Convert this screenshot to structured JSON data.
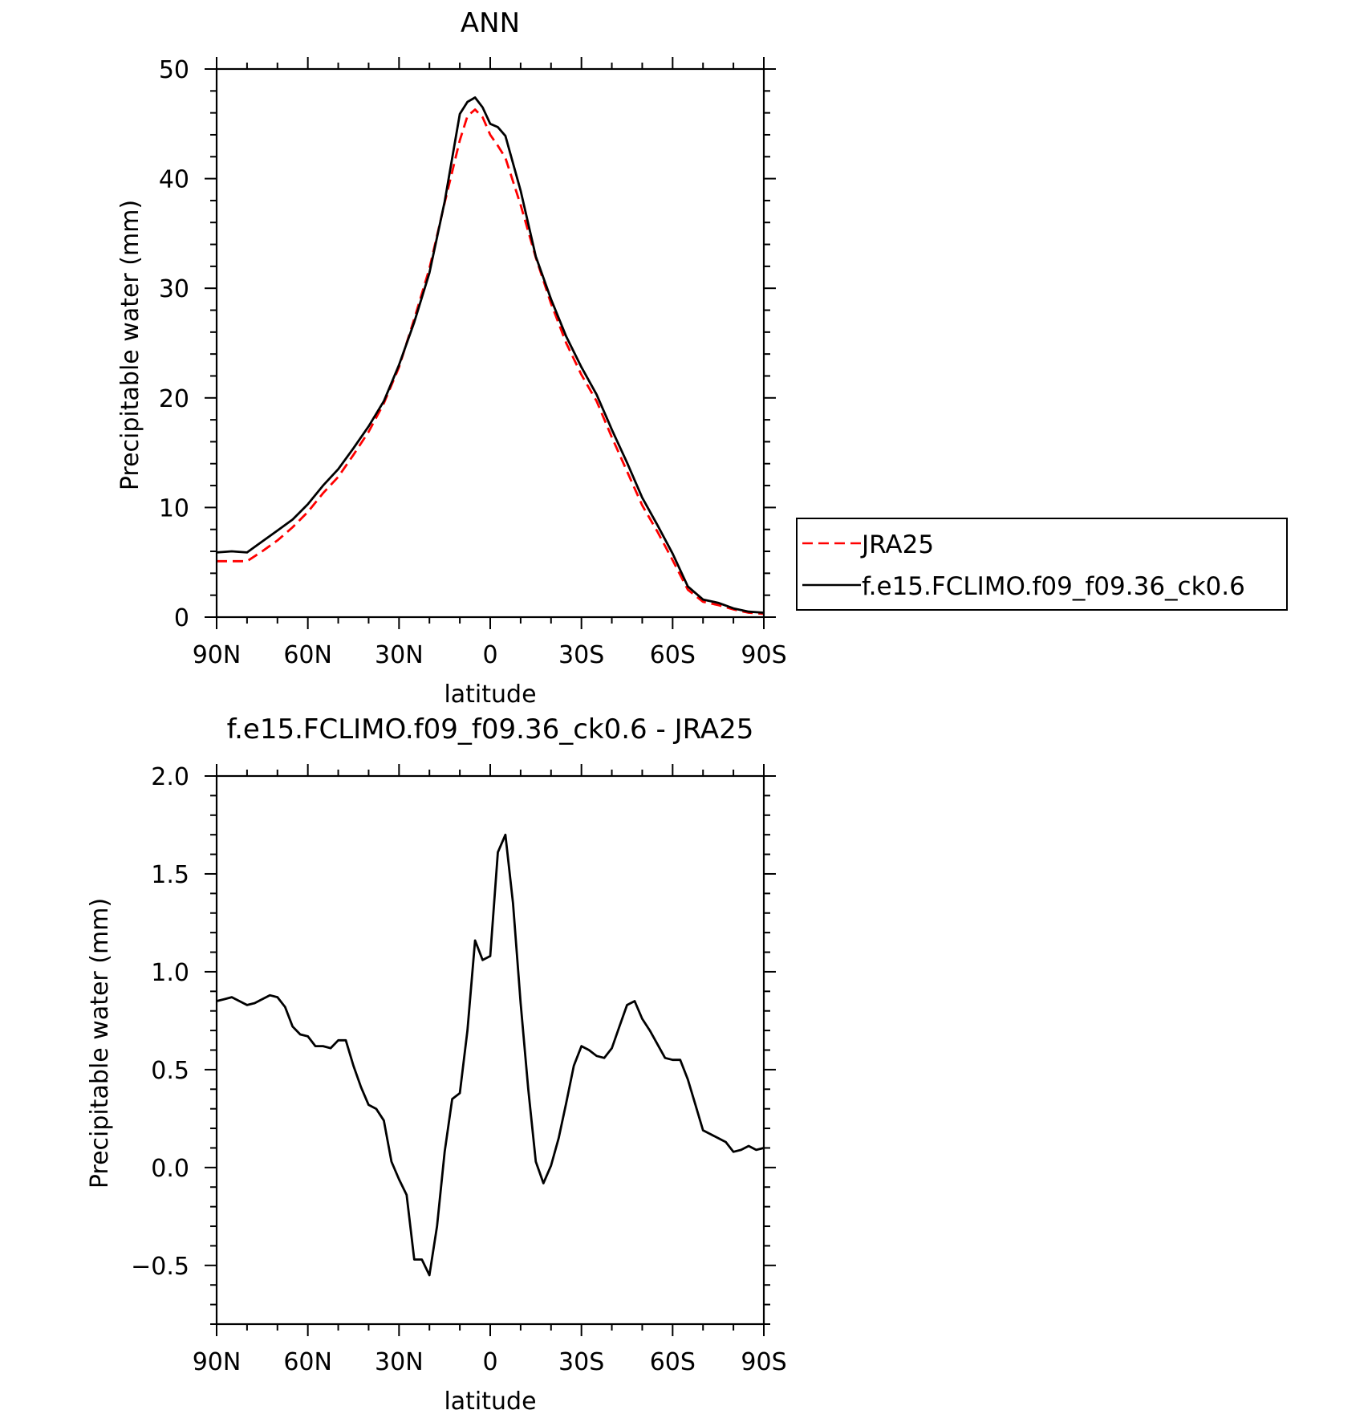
{
  "chart_data": [
    {
      "type": "line",
      "title": "ANN",
      "xlabel": "latitude",
      "ylabel": "Precipitable water (mm)",
      "xlim": [
        -90,
        90
      ],
      "ylim": [
        0,
        50
      ],
      "xticks": [
        -90,
        -60,
        -30,
        0,
        30,
        60,
        90
      ],
      "xtick_labels": [
        "90N",
        "60N",
        "30N",
        "0",
        "30S",
        "60S",
        "90S"
      ],
      "yticks": [
        0,
        10,
        20,
        30,
        40,
        50
      ],
      "ytick_labels": [
        "0",
        "10",
        "20",
        "30",
        "40",
        "50"
      ],
      "grid": false,
      "legend": "right",
      "series": [
        {
          "name": "JRA25",
          "color": "#ff0000",
          "dash": "dashed",
          "x": [
            -90,
            -85,
            -80,
            -75,
            -70,
            -65,
            -60,
            -55,
            -50,
            -45,
            -40,
            -35,
            -30,
            -25,
            -20,
            -15,
            -10,
            -7.5,
            -5,
            -2.5,
            0,
            2.5,
            5,
            10,
            15,
            20,
            25,
            30,
            35,
            40,
            45,
            50,
            55,
            60,
            65,
            70,
            75,
            80,
            85,
            90
          ],
          "y": [
            5.1,
            5.1,
            5.1,
            6.0,
            7.0,
            8.2,
            9.6,
            11.3,
            12.8,
            14.8,
            16.9,
            19.5,
            22.8,
            27.2,
            31.8,
            37.8,
            43.5,
            45.7,
            46.3,
            45.6,
            44.0,
            43.0,
            41.9,
            37.6,
            32.8,
            28.6,
            25.0,
            22.1,
            19.7,
            16.4,
            13.3,
            10.2,
            7.8,
            5.2,
            2.5,
            1.4,
            1.1,
            0.7,
            0.4,
            0.3
          ]
        },
        {
          "name": "f.e15.FCLIMO.f09_f09.36_ck0.6",
          "color": "#000000",
          "dash": "solid",
          "x": [
            -90,
            -85,
            -80,
            -75,
            -70,
            -65,
            -60,
            -55,
            -50,
            -45,
            -40,
            -35,
            -30,
            -25,
            -20,
            -15,
            -10,
            -7.5,
            -5,
            -2.5,
            0,
            2.5,
            5,
            10,
            15,
            20,
            25,
            30,
            35,
            40,
            45,
            50,
            55,
            60,
            65,
            70,
            75,
            80,
            85,
            90
          ],
          "y": [
            5.9,
            6.0,
            5.9,
            6.9,
            7.9,
            8.9,
            10.3,
            12.0,
            13.5,
            15.4,
            17.4,
            19.7,
            23.0,
            26.9,
            31.4,
            37.9,
            45.9,
            47.0,
            47.4,
            46.5,
            45.0,
            44.7,
            43.9,
            38.9,
            32.9,
            29.0,
            25.6,
            22.8,
            20.3,
            17.1,
            14.1,
            10.9,
            8.4,
            5.8,
            2.8,
            1.6,
            1.3,
            0.8,
            0.5,
            0.4
          ]
        }
      ]
    },
    {
      "type": "line",
      "title": "f.e15.FCLIMO.f09_f09.36_ck0.6 - JRA25",
      "xlabel": "latitude",
      "ylabel": "Precipitable water (mm)",
      "xlim": [
        -90,
        90
      ],
      "ylim": [
        -0.8,
        2.0
      ],
      "xticks": [
        -90,
        -60,
        -30,
        0,
        30,
        60,
        90
      ],
      "xtick_labels": [
        "90N",
        "60N",
        "30N",
        "0",
        "30S",
        "60S",
        "90S"
      ],
      "yticks": [
        -0.5,
        0.0,
        0.5,
        1.0,
        1.5,
        2.0
      ],
      "ytick_labels": [
        "−0.5",
        "0.0",
        "0.5",
        "1.0",
        "1.5",
        "2.0"
      ],
      "grid": false,
      "series": [
        {
          "color": "#000000",
          "dash": "solid",
          "x": [
            -90,
            -87.5,
            -85,
            -82.5,
            -80,
            -77.5,
            -75,
            -72.5,
            -70,
            -67.5,
            -65,
            -62.5,
            -60,
            -57.5,
            -55,
            -52.5,
            -50,
            -47.5,
            -45,
            -42.5,
            -40,
            -37.5,
            -35,
            -32.5,
            -30,
            -27.5,
            -25,
            -22.5,
            -20,
            -17.5,
            -15,
            -12.5,
            -10,
            -7.5,
            -5,
            -2.5,
            0,
            2.5,
            5,
            7.5,
            10,
            12.5,
            15,
            17.5,
            20,
            22.5,
            25,
            27.5,
            30,
            32.5,
            35,
            37.5,
            40,
            42.5,
            45,
            47.5,
            50,
            52.5,
            55,
            57.5,
            60,
            62.5,
            65,
            67.5,
            70,
            72.5,
            75,
            77.5,
            80,
            82.5,
            85,
            87.5,
            90
          ],
          "y": [
            0.85,
            0.86,
            0.87,
            0.85,
            0.83,
            0.84,
            0.86,
            0.88,
            0.87,
            0.82,
            0.72,
            0.68,
            0.67,
            0.62,
            0.62,
            0.61,
            0.65,
            0.65,
            0.52,
            0.41,
            0.32,
            0.3,
            0.24,
            0.03,
            -0.06,
            -0.14,
            -0.47,
            -0.47,
            -0.55,
            -0.3,
            0.08,
            0.35,
            0.38,
            0.7,
            1.16,
            1.06,
            1.08,
            1.61,
            1.7,
            1.35,
            0.84,
            0.4,
            0.03,
            -0.08,
            0.01,
            0.15,
            0.33,
            0.52,
            0.62,
            0.6,
            0.57,
            0.56,
            0.61,
            0.72,
            0.83,
            0.85,
            0.76,
            0.7,
            0.63,
            0.56,
            0.55,
            0.55,
            0.45,
            0.32,
            0.19,
            0.17,
            0.15,
            0.13,
            0.08,
            0.09,
            0.11,
            0.09,
            0.1
          ]
        }
      ]
    }
  ]
}
